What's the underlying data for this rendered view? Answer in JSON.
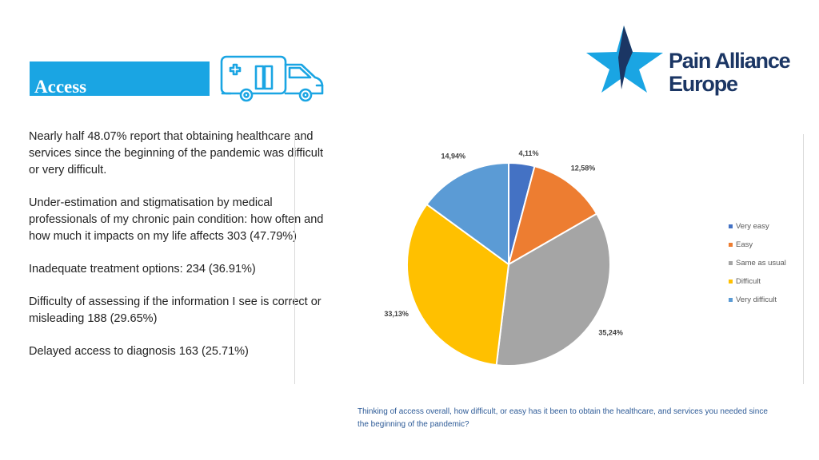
{
  "slide": {
    "title": "Access",
    "brand_color": "#1aa5e3",
    "logo": {
      "line1": "Pain Alliance",
      "line2": "Europe",
      "icon": "star-logo-icon",
      "color": "#1b3664"
    },
    "ambulance_icon": "ambulance-icon",
    "bullets": [
      "Nearly half 48.07% report that obtaining healthcare and services since the beginning of the pandemic was difficult or very difficult.",
      "Under-estimation and stigmatisation by medical professionals of my chronic pain condition: how often and how much it impacts on my life affects 303 (47.79%)",
      "Inadequate treatment options: 234 (36.91%)",
      "Difficulty of assessing if the information I see is correct or misleading 188 (29.65%)",
      "Delayed access to diagnosis 163 (25.71%)"
    ],
    "caption": "Thinking of access overall, how difficult, or easy has it been to obtain the healthcare, and services you needed since the beginning of the pandemic?"
  },
  "chart_data": {
    "type": "pie",
    "categories": [
      "Very easy",
      "Easy",
      "Same as usual",
      "Difficult",
      "Very difficult"
    ],
    "values": [
      4.11,
      12.58,
      35.24,
      33.13,
      14.94
    ],
    "data_labels": [
      "4,11%",
      "12,58%",
      "35,24%",
      "33,13%",
      "14,94%"
    ],
    "colors": [
      "#4472c4",
      "#ed7d31",
      "#a5a5a5",
      "#ffc000",
      "#5b9bd5"
    ],
    "legend_position": "right"
  }
}
